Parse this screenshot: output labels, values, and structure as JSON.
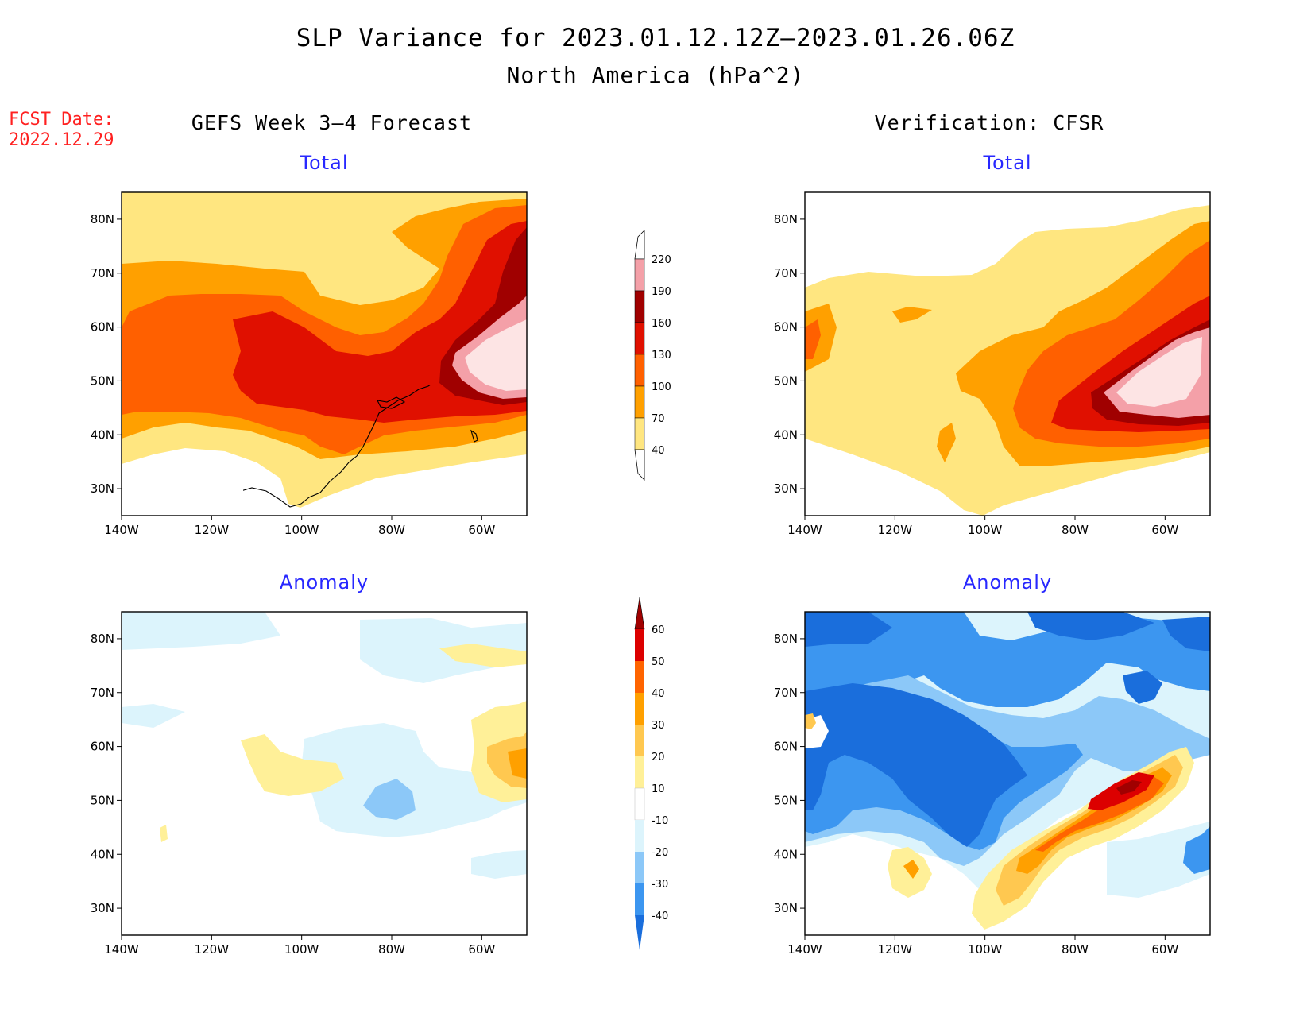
{
  "header": {
    "title": "SLP Variance for 2023.01.12.12Z–2023.01.26.06Z",
    "subtitle": "North America (hPa^2)"
  },
  "fcst": {
    "label": "FCST Date:",
    "date": "2022.12.29"
  },
  "columns": {
    "left": "GEFS Week 3–4 Forecast",
    "right": "Verification: CFSR"
  },
  "panels": {
    "total": "Total",
    "anomaly": "Anomaly"
  },
  "map_axes": {
    "lat_labels": [
      "80N",
      "70N",
      "60N",
      "50N",
      "40N",
      "30N"
    ],
    "lat_values": [
      80,
      70,
      60,
      50,
      40,
      30
    ],
    "lon_labels": [
      "140W",
      "120W",
      "100W",
      "80W",
      "60W"
    ],
    "lon_values": [
      -140,
      -120,
      -100,
      -80,
      -60
    ],
    "extent": {
      "lon": [
        -140,
        -50
      ],
      "lat": [
        25,
        85
      ]
    }
  },
  "colorbars": {
    "total": {
      "labels": [
        "40",
        "70",
        "100",
        "130",
        "160",
        "190",
        "220"
      ],
      "colors": [
        "#ffe680",
        "#ffa000",
        "#ff6000",
        "#e01000",
        "#a00000",
        "#f4a0a8",
        "#fde4e4"
      ]
    },
    "anomaly": {
      "labels": [
        "-40",
        "-30",
        "-20",
        "-10",
        "10",
        "20",
        "30",
        "40",
        "50",
        "60"
      ],
      "colors": [
        "#1a6edc",
        "#3c96f0",
        "#8cc8f8",
        "#dcf4fc",
        "#ffffff",
        "#fff098",
        "#ffc850",
        "#ffa000",
        "#ff6400",
        "#dc0000",
        "#a00000"
      ]
    }
  },
  "colors": {
    "total_scale": [
      "#ffffff",
      "#ffe680",
      "#ffa000",
      "#ff6000",
      "#e01000",
      "#a00000",
      "#f4a0a8",
      "#fde4e4"
    ],
    "anom_blue": [
      "#dcf4fc",
      "#8cc8f8",
      "#3c96f0",
      "#1a6edc"
    ],
    "anom_warm": [
      "#fff098",
      "#ffc850",
      "#ffa000",
      "#ff6400",
      "#dc0000"
    ]
  }
}
